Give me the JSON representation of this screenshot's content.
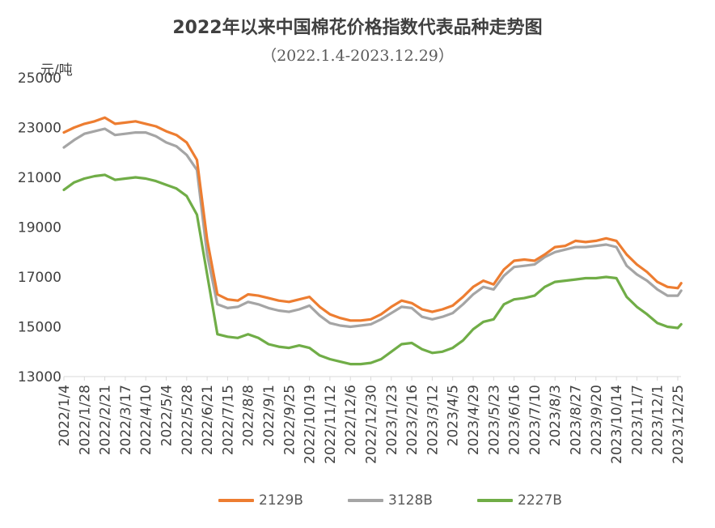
{
  "title": "2022年以来中国棉花价格指数代表品种走势图",
  "subtitle": "（2022.1.4-2023.12.29）",
  "colors": {
    "s2129B": "#ED7D31",
    "s3128B": "#A5A5A5",
    "s2227B": "#70AD47",
    "axis": "#D9D9D9",
    "text": "#595959"
  },
  "chart_data": {
    "type": "line",
    "title": "2022年以来中国棉花价格指数代表品种走势图",
    "subtitle": "（2022.1.4-2023.12.29）",
    "ylabel": "元/吨",
    "ylim": [
      13000,
      25000
    ],
    "yticks": [
      "13000",
      "15000",
      "17000",
      "19000",
      "21000",
      "23000",
      "25000"
    ],
    "grid": false,
    "legend_position": "bottom",
    "x_tick_labels": [
      "2022/1/4",
      "2022/1/28",
      "2022/2/21",
      "2022/3/17",
      "2022/4/10",
      "2022/5/4",
      "2022/5/28",
      "2022/6/21",
      "2022/7/15",
      "2022/8/8",
      "2022/9/1",
      "2022/9/25",
      "2022/10/19",
      "2022/11/12",
      "2022/12/6",
      "2022/12/30",
      "2023/1/23",
      "2023/2/16",
      "2023/3/12",
      "2023/4/5",
      "2023/4/29",
      "2023/5/23",
      "2023/6/16",
      "2023/7/10",
      "2023/8/3",
      "2023/8/27",
      "2023/9/20",
      "2023/10/14",
      "2023/11/7",
      "2023/12/1",
      "2023/12/25"
    ],
    "x": [
      "2022/1/4",
      "2022/1/16",
      "2022/1/28",
      "2022/2/9",
      "2022/2/21",
      "2022/3/5",
      "2022/3/17",
      "2022/3/29",
      "2022/4/10",
      "2022/4/22",
      "2022/5/4",
      "2022/5/16",
      "2022/5/28",
      "2022/6/9",
      "2022/6/21",
      "2022/7/3",
      "2022/7/15",
      "2022/7/27",
      "2022/8/8",
      "2022/8/20",
      "2022/9/1",
      "2022/9/13",
      "2022/9/25",
      "2022/10/7",
      "2022/10/19",
      "2022/10/31",
      "2022/11/12",
      "2022/11/24",
      "2022/12/6",
      "2022/12/18",
      "2022/12/30",
      "2023/1/11",
      "2023/1/23",
      "2023/2/4",
      "2023/2/16",
      "2023/2/28",
      "2023/3/12",
      "2023/3/24",
      "2023/4/5",
      "2023/4/17",
      "2023/4/29",
      "2023/5/11",
      "2023/5/23",
      "2023/6/4",
      "2023/6/16",
      "2023/6/28",
      "2023/7/10",
      "2023/7/22",
      "2023/8/3",
      "2023/8/15",
      "2023/8/27",
      "2023/9/8",
      "2023/9/20",
      "2023/10/2",
      "2023/10/14",
      "2023/10/26",
      "2023/11/7",
      "2023/11/19",
      "2023/12/1",
      "2023/12/13",
      "2023/12/25",
      "2023/12/29"
    ],
    "series": [
      {
        "name": "2129B",
        "values": [
          22800,
          23000,
          23150,
          23250,
          23400,
          23150,
          23200,
          23250,
          23150,
          23050,
          22850,
          22700,
          22400,
          21700,
          18500,
          16300,
          16100,
          16050,
          16300,
          16250,
          16150,
          16050,
          16000,
          16100,
          16200,
          15800,
          15500,
          15350,
          15250,
          15250,
          15300,
          15500,
          15800,
          16050,
          15950,
          15700,
          15600,
          15700,
          15850,
          16200,
          16600,
          16850,
          16700,
          17300,
          17650,
          17700,
          17650,
          17900,
          18200,
          18250,
          18450,
          18400,
          18450,
          18550,
          18450,
          17900,
          17500,
          17200,
          16800,
          16600,
          16550,
          16750
        ]
      },
      {
        "name": "3128B",
        "values": [
          22200,
          22500,
          22750,
          22850,
          22950,
          22700,
          22750,
          22800,
          22800,
          22650,
          22400,
          22250,
          21900,
          21300,
          17900,
          15900,
          15750,
          15800,
          16000,
          15900,
          15750,
          15650,
          15600,
          15700,
          15850,
          15450,
          15150,
          15050,
          15000,
          15050,
          15100,
          15300,
          15550,
          15800,
          15750,
          15400,
          15300,
          15400,
          15550,
          15900,
          16300,
          16600,
          16500,
          17050,
          17400,
          17450,
          17500,
          17800,
          18000,
          18100,
          18200,
          18200,
          18250,
          18300,
          18200,
          17450,
          17100,
          16850,
          16500,
          16250,
          16250,
          16450
        ]
      },
      {
        "name": "2227B",
        "values": [
          20500,
          20800,
          20950,
          21050,
          21100,
          20900,
          20950,
          21000,
          20950,
          20850,
          20700,
          20550,
          20250,
          19500,
          17100,
          14700,
          14600,
          14550,
          14700,
          14550,
          14300,
          14200,
          14150,
          14250,
          14150,
          13850,
          13700,
          13600,
          13500,
          13500,
          13550,
          13700,
          14000,
          14300,
          14350,
          14100,
          13950,
          14000,
          14150,
          14450,
          14900,
          15200,
          15300,
          15900,
          16100,
          16150,
          16250,
          16600,
          16800,
          16850,
          16900,
          16950,
          16950,
          17000,
          16950,
          16200,
          15800,
          15500,
          15150,
          15000,
          14950,
          15100
        ]
      }
    ]
  }
}
